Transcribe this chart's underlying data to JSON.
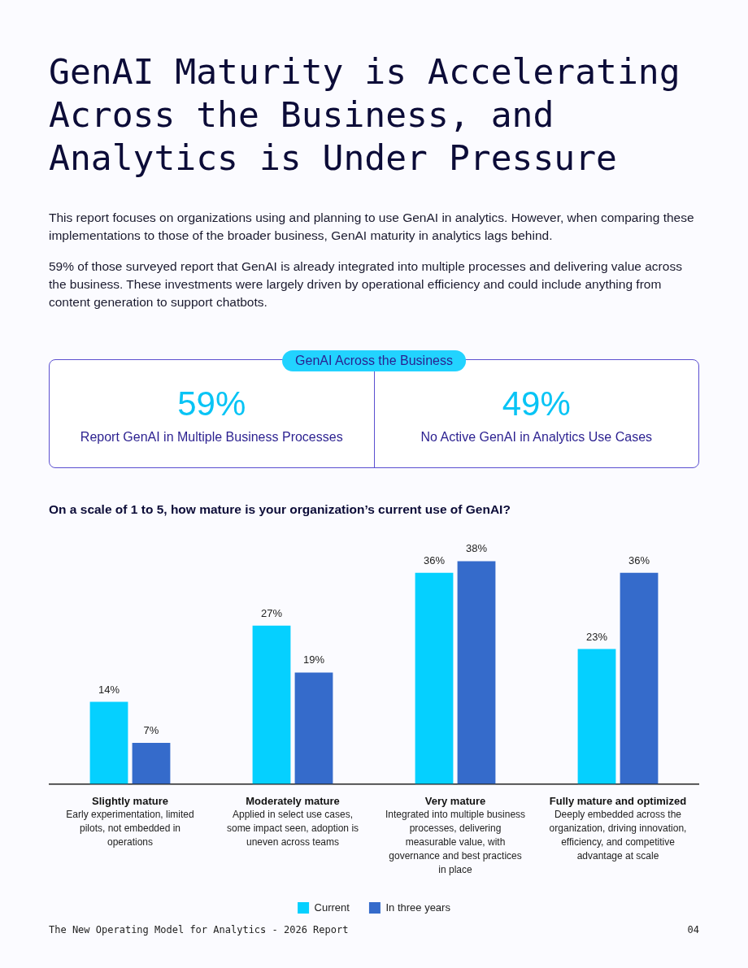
{
  "chart_data": [
    {
      "type": "other",
      "title": "GenAI Maturity is Accelerating Across the Business, and Analytics is Under Pressure",
      "annotations": [
        "This report focuses on organizations using and planning to use GenAI in analytics. However, when comparing these implementations to those of the broader business, GenAI maturity in analytics lags behind.",
        "59% of those surveyed report that GenAI is already integrated into multiple processes and delivering value across the business. These investments were largely driven by operational efficiency and could include anything from content generation to support chatbots."
      ]
    },
    {
      "type": "other",
      "title": "GenAI Across the Business",
      "annotations": [
        "59%",
        "Report GenAI in Multiple Business Processes",
        "49%",
        "No Active GenAI in Analytics Use Cases"
      ]
    },
    {
      "type": "bar",
      "title": "On a scale of 1 to 5, how mature is your organization’s current use of GenAI?",
      "categories": [
        "Slightly mature",
        "Moderately mature",
        "Very mature",
        "Fully mature and optimized"
      ],
      "series": [
        {
          "name": "Current",
          "color": "#05d0ff",
          "values": [
            14,
            27,
            36,
            23
          ],
          "value_labels": [
            "14%",
            "27%",
            "36%",
            "23%"
          ]
        },
        {
          "name": "In three years",
          "color": "#356bcb",
          "values": [
            7,
            19,
            38,
            36
          ],
          "value_labels": [
            "7%",
            "19%",
            "38%",
            "36%"
          ]
        }
      ],
      "annotations": [
        "Early experimentation, limited pilots, not embedded in operations",
        "Applied in select use cases, some impact seen, adoption is uneven across teams",
        "Integrated into multiple business processes, delivering measurable value, with governance and best practices in place",
        "Deeply embedded across the organization, driving innovation, efficiency, and competitive advantage at scale",
        "The New Operating Model for Analytics - 2026 Report",
        "04"
      ],
      "legend": "bottom",
      "grid": false
    }
  ]
}
